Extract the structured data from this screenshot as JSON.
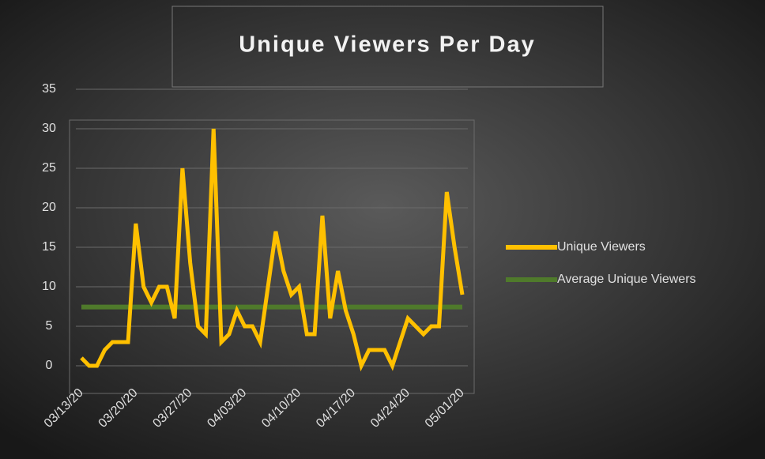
{
  "chart_data": {
    "type": "line",
    "title": "Unique Viewers Per Day",
    "categories": [
      "03/13/20",
      null,
      null,
      null,
      null,
      null,
      null,
      "03/20/20",
      null,
      null,
      null,
      null,
      null,
      null,
      "03/27/20",
      null,
      null,
      null,
      null,
      null,
      null,
      "04/03/20",
      null,
      null,
      null,
      null,
      null,
      null,
      "04/10/20",
      null,
      null,
      null,
      null,
      null,
      null,
      "04/17/20",
      null,
      null,
      null,
      null,
      null,
      null,
      "04/24/20",
      null,
      null,
      null,
      null,
      null,
      null,
      "05/01/20"
    ],
    "series": [
      {
        "name": "Unique Viewers",
        "color": "#ffc000",
        "values": [
          1,
          0,
          0,
          2,
          3,
          3,
          3,
          18,
          10,
          8,
          10,
          10,
          6,
          25,
          13,
          5,
          4,
          30,
          3,
          4,
          7,
          5,
          5,
          3,
          10,
          17,
          12,
          9,
          10,
          4,
          4,
          19,
          6,
          12,
          7,
          4,
          0,
          2,
          2,
          2,
          0,
          3,
          6,
          5,
          4,
          5,
          5,
          22,
          15,
          9
        ]
      },
      {
        "name": "Average Unique Viewers",
        "color": "#4f7a2b",
        "values": [
          7.44,
          7.44,
          7.44,
          7.44,
          7.44,
          7.44,
          7.44,
          7.44,
          7.44,
          7.44,
          7.44,
          7.44,
          7.44,
          7.44,
          7.44,
          7.44,
          7.44,
          7.44,
          7.44,
          7.44,
          7.44,
          7.44,
          7.44,
          7.44,
          7.44,
          7.44,
          7.44,
          7.44,
          7.44,
          7.44,
          7.44,
          7.44,
          7.44,
          7.44,
          7.44,
          7.44,
          7.44,
          7.44,
          7.44,
          7.44,
          7.44,
          7.44,
          7.44,
          7.44,
          7.44,
          7.44,
          7.44,
          7.44,
          7.44,
          7.44
        ]
      }
    ],
    "ylim": [
      0,
      35
    ],
    "yticks": [
      0,
      5,
      10,
      15,
      20,
      25,
      30,
      35
    ],
    "grid": true,
    "legend": "right"
  }
}
